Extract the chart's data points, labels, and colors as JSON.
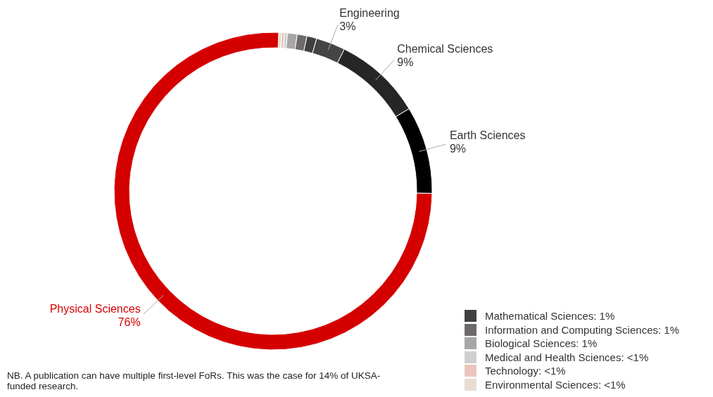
{
  "chart_data": {
    "type": "donut",
    "categories": [
      "Environmental Sciences: <1%",
      "Technology: <1%",
      "Medical and Health Sciences: <1%",
      "Biological Sciences: 1%",
      "Information and Computing Sciences: 1%",
      "Mathematical Sciences: 1%",
      "Engineering",
      "Chemical Sciences",
      "Earth Sciences",
      "Physical Sciences"
    ],
    "values": [
      0.3,
      0.3,
      0.3,
      1,
      1,
      1,
      3,
      9,
      9,
      76
    ],
    "value_labels": [
      null,
      null,
      null,
      null,
      null,
      null,
      "3%",
      "9%",
      "9%",
      "76%"
    ],
    "colors": [
      "#e8ddd3",
      "#ecc4bc",
      "#cfcfd1",
      "#a8a6a6",
      "#6e6a6a",
      "#404040",
      "#454545",
      "#262626",
      "#000000",
      "#d40000"
    ],
    "legend": "bottom right",
    "annotations": [
      "NB. A publication can have multiple first-level FoRs. This was the case for 14% of UKSA-funded research."
    ]
  }
}
